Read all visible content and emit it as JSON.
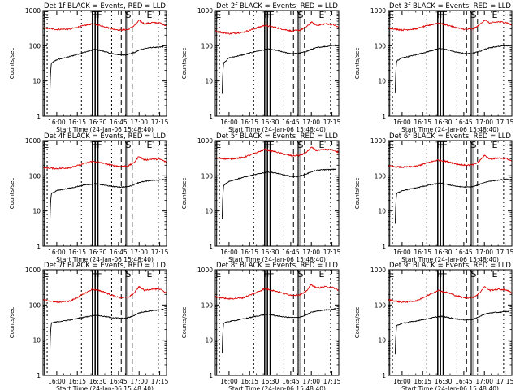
{
  "figure": {
    "xlabel": "Start Time (24-Jan-06 15:48:40)",
    "ylabel": "Counts/sec",
    "colors": {
      "events": "#000000",
      "lld": "#dd0000",
      "axes": "#000000"
    }
  },
  "chart_data": [
    {
      "type": "line",
      "title": "Det 1f BLACK = Events, RED = LLD",
      "xlim": [
        0,
        90
      ],
      "ylim": [
        1,
        1000
      ],
      "yscale": "log",
      "xticks": [
        "16:00",
        "16:15",
        "16:30",
        "16:45",
        "17:00",
        "17:15"
      ],
      "yticks": [
        "1",
        "10",
        "100",
        "1000"
      ],
      "markers": [
        "E",
        "F",
        "F",
        "F",
        "S",
        "E"
      ],
      "series": [
        {
          "name": "Events",
          "color": "#000000",
          "x": [
            5,
            10,
            20,
            30,
            38,
            44,
            50,
            56,
            60,
            64,
            67,
            70,
            75,
            80,
            84,
            88
          ],
          "y": [
            30,
            40,
            50,
            65,
            80,
            70,
            60,
            55,
            55,
            60,
            65,
            75,
            85,
            90,
            90,
            95
          ]
        },
        {
          "name": "LLD",
          "color": "#dd0000",
          "x": [
            0,
            10,
            20,
            28,
            36,
            44,
            50,
            56,
            62,
            66,
            70,
            74,
            80,
            86,
            90
          ],
          "y": [
            320,
            290,
            300,
            360,
            420,
            360,
            300,
            280,
            290,
            360,
            520,
            420,
            460,
            440,
            360
          ]
        }
      ]
    },
    {
      "type": "line",
      "title": "Det 2f BLACK = Events, RED = LLD",
      "xlim": [
        0,
        90
      ],
      "ylim": [
        1,
        1000
      ],
      "yscale": "log",
      "xticks": [
        "16:00",
        "16:15",
        "16:30",
        "16:45",
        "17:00",
        "17:15"
      ],
      "yticks": [
        "1",
        "10",
        "100",
        "1000"
      ],
      "markers": [
        "E",
        "F",
        "F",
        "F",
        "S",
        "E"
      ],
      "series": [
        {
          "name": "Events",
          "color": "#000000",
          "x": [
            5,
            10,
            20,
            30,
            38,
            44,
            50,
            56,
            60,
            64,
            67,
            70,
            75,
            80,
            84,
            88
          ],
          "y": [
            30,
            45,
            55,
            70,
            80,
            75,
            65,
            60,
            60,
            65,
            70,
            80,
            90,
            95,
            100,
            105
          ]
        },
        {
          "name": "LLD",
          "color": "#dd0000",
          "x": [
            0,
            10,
            20,
            28,
            36,
            44,
            50,
            56,
            62,
            66,
            70,
            74,
            80,
            86,
            90
          ],
          "y": [
            260,
            220,
            240,
            300,
            380,
            330,
            290,
            260,
            280,
            330,
            470,
            380,
            420,
            400,
            330
          ]
        }
      ]
    },
    {
      "type": "line",
      "title": "Det 3f BLACK = Events, RED = LLD",
      "xlim": [
        0,
        90
      ],
      "ylim": [
        1,
        1000
      ],
      "yscale": "log",
      "xticks": [
        "16:00",
        "16:15",
        "16:30",
        "16:45",
        "17:00",
        "17:15"
      ],
      "yticks": [
        "1",
        "10",
        "100",
        "1000"
      ],
      "markers": [
        "E",
        "F",
        "F",
        "F",
        "S",
        "E"
      ],
      "series": [
        {
          "name": "Events",
          "color": "#000000",
          "x": [
            5,
            10,
            20,
            30,
            38,
            44,
            50,
            56,
            60,
            64,
            67,
            70,
            75,
            80,
            84,
            88
          ],
          "y": [
            35,
            45,
            55,
            70,
            85,
            75,
            65,
            60,
            60,
            65,
            70,
            80,
            90,
            95,
            100,
            100
          ]
        },
        {
          "name": "LLD",
          "color": "#dd0000",
          "x": [
            0,
            10,
            20,
            28,
            36,
            44,
            50,
            56,
            62,
            66,
            70,
            74,
            80,
            86,
            90
          ],
          "y": [
            320,
            280,
            300,
            370,
            440,
            380,
            320,
            290,
            300,
            380,
            540,
            440,
            480,
            460,
            380
          ]
        }
      ]
    },
    {
      "type": "line",
      "title": "Det 4f BLACK = Events, RED = LLD",
      "xlim": [
        0,
        90
      ],
      "ylim": [
        1,
        1000
      ],
      "yscale": "log",
      "xticks": [
        "16:00",
        "16:15",
        "16:30",
        "16:45",
        "17:00",
        "17:15"
      ],
      "yticks": [
        "1",
        "10",
        "100",
        "1000"
      ],
      "markers": [
        "E",
        "F",
        "F",
        "F",
        "S",
        "E"
      ],
      "series": [
        {
          "name": "Events",
          "color": "#000000",
          "x": [
            5,
            10,
            20,
            30,
            38,
            44,
            50,
            56,
            60,
            64,
            67,
            70,
            75,
            80,
            84,
            88
          ],
          "y": [
            30,
            38,
            45,
            55,
            60,
            55,
            50,
            48,
            48,
            52,
            58,
            65,
            70,
            75,
            75,
            80
          ]
        },
        {
          "name": "LLD",
          "color": "#dd0000",
          "x": [
            0,
            10,
            20,
            28,
            36,
            44,
            50,
            56,
            62,
            66,
            70,
            74,
            80,
            86,
            90
          ],
          "y": [
            170,
            160,
            170,
            210,
            260,
            230,
            200,
            185,
            190,
            230,
            360,
            280,
            300,
            290,
            240
          ]
        }
      ]
    },
    {
      "type": "line",
      "title": "Det 5f BLACK = Events, RED = LLD",
      "xlim": [
        0,
        90
      ],
      "ylim": [
        1,
        1000
      ],
      "yscale": "log",
      "xticks": [
        "16:00",
        "16:15",
        "16:30",
        "16:45",
        "17:00",
        "17:15"
      ],
      "yticks": [
        "1",
        "10",
        "100",
        "1000"
      ],
      "markers": [
        "E",
        "F",
        "F",
        "F",
        "S",
        "E"
      ],
      "series": [
        {
          "name": "Events",
          "color": "#000000",
          "x": [
            5,
            10,
            20,
            30,
            38,
            44,
            50,
            56,
            60,
            64,
            67,
            70,
            75,
            80,
            84,
            88
          ],
          "y": [
            50,
            70,
            90,
            110,
            130,
            120,
            105,
            95,
            95,
            105,
            115,
            130,
            145,
            150,
            150,
            155
          ]
        },
        {
          "name": "LLD",
          "color": "#dd0000",
          "x": [
            0,
            10,
            20,
            28,
            36,
            44,
            50,
            56,
            62,
            66,
            70,
            74,
            80,
            86,
            90
          ],
          "y": [
            320,
            300,
            330,
            420,
            560,
            480,
            410,
            370,
            380,
            450,
            640,
            520,
            560,
            540,
            460
          ]
        }
      ]
    },
    {
      "type": "line",
      "title": "Det 6f BLACK = Events, RED = LLD",
      "xlim": [
        0,
        90
      ],
      "ylim": [
        1,
        1000
      ],
      "yscale": "log",
      "xticks": [
        "16:00",
        "16:15",
        "16:30",
        "16:45",
        "17:00",
        "17:15"
      ],
      "yticks": [
        "1",
        "10",
        "100",
        "1000"
      ],
      "markers": [
        "E",
        "F",
        "F",
        "F",
        "S",
        "E"
      ],
      "series": [
        {
          "name": "Events",
          "color": "#000000",
          "x": [
            5,
            10,
            20,
            30,
            38,
            44,
            50,
            56,
            60,
            64,
            67,
            70,
            75,
            80,
            84,
            88
          ],
          "y": [
            30,
            38,
            45,
            55,
            62,
            56,
            50,
            48,
            48,
            52,
            58,
            65,
            72,
            75,
            78,
            80
          ]
        },
        {
          "name": "LLD",
          "color": "#dd0000",
          "x": [
            0,
            10,
            20,
            28,
            36,
            44,
            50,
            56,
            62,
            66,
            70,
            74,
            80,
            86,
            90
          ],
          "y": [
            190,
            175,
            185,
            230,
            280,
            250,
            215,
            200,
            205,
            250,
            380,
            300,
            320,
            310,
            260
          ]
        }
      ]
    },
    {
      "type": "line",
      "title": "Det 7f BLACK = Events, RED = LLD",
      "xlim": [
        0,
        90
      ],
      "ylim": [
        1,
        1000
      ],
      "yscale": "log",
      "xticks": [
        "16:00",
        "16:15",
        "16:30",
        "16:45",
        "17:00",
        "17:15"
      ],
      "yticks": [
        "1",
        "10",
        "100",
        "1000"
      ],
      "markers": [
        "E",
        "F",
        "F",
        "F",
        "S",
        "E"
      ],
      "series": [
        {
          "name": "Events",
          "color": "#000000",
          "x": [
            5,
            10,
            20,
            30,
            38,
            44,
            50,
            56,
            60,
            64,
            67,
            70,
            75,
            80,
            84,
            88
          ],
          "y": [
            30,
            33,
            38,
            45,
            52,
            48,
            44,
            42,
            42,
            46,
            52,
            60,
            65,
            70,
            72,
            75
          ]
        },
        {
          "name": "LLD",
          "color": "#dd0000",
          "x": [
            0,
            10,
            20,
            28,
            36,
            44,
            50,
            56,
            62,
            66,
            70,
            74,
            80,
            86,
            90
          ],
          "y": [
            140,
            120,
            130,
            190,
            280,
            240,
            190,
            160,
            165,
            210,
            330,
            260,
            290,
            270,
            220
          ]
        }
      ]
    },
    {
      "type": "line",
      "title": "Det 8f BLACK = Events, RED = LLD",
      "xlim": [
        0,
        90
      ],
      "ylim": [
        1,
        1000
      ],
      "yscale": "log",
      "xticks": [
        "16:00",
        "16:15",
        "16:30",
        "16:45",
        "17:00",
        "17:15"
      ],
      "yticks": [
        "1",
        "10",
        "100",
        "1000"
      ],
      "markers": [
        "E",
        "F",
        "F",
        "F",
        "S",
        "E"
      ],
      "series": [
        {
          "name": "Events",
          "color": "#000000",
          "x": [
            5,
            10,
            20,
            30,
            38,
            44,
            50,
            56,
            60,
            64,
            67,
            70,
            75,
            80,
            84,
            88
          ],
          "y": [
            30,
            34,
            40,
            48,
            55,
            50,
            46,
            44,
            44,
            48,
            54,
            62,
            68,
            72,
            74,
            78
          ]
        },
        {
          "name": "LLD",
          "color": "#dd0000",
          "x": [
            0,
            10,
            20,
            28,
            36,
            44,
            50,
            56,
            62,
            66,
            70,
            74,
            80,
            86,
            90
          ],
          "y": [
            170,
            150,
            160,
            210,
            290,
            250,
            210,
            190,
            195,
            240,
            380,
            300,
            330,
            310,
            260
          ]
        }
      ]
    },
    {
      "type": "line",
      "title": "Det 9f BLACK = Events, RED = LLD",
      "xlim": [
        0,
        90
      ],
      "ylim": [
        1,
        1000
      ],
      "yscale": "log",
      "xticks": [
        "16:00",
        "16:15",
        "16:30",
        "16:45",
        "17:00",
        "17:15"
      ],
      "yticks": [
        "1",
        "10",
        "100",
        "1000"
      ],
      "markers": [
        "E",
        "F",
        "F",
        "F",
        "S",
        "E"
      ],
      "series": [
        {
          "name": "Events",
          "color": "#000000",
          "x": [
            5,
            10,
            20,
            30,
            38,
            44,
            50,
            56,
            60,
            64,
            67,
            70,
            75,
            80,
            84,
            88
          ],
          "y": [
            25,
            30,
            35,
            42,
            48,
            44,
            40,
            38,
            38,
            42,
            48,
            55,
            60,
            62,
            64,
            66
          ]
        },
        {
          "name": "LLD",
          "color": "#dd0000",
          "x": [
            0,
            10,
            20,
            28,
            36,
            44,
            50,
            56,
            62,
            66,
            70,
            74,
            80,
            86,
            90
          ],
          "y": [
            140,
            120,
            130,
            180,
            260,
            220,
            180,
            160,
            165,
            210,
            330,
            260,
            280,
            270,
            220
          ]
        }
      ]
    }
  ]
}
